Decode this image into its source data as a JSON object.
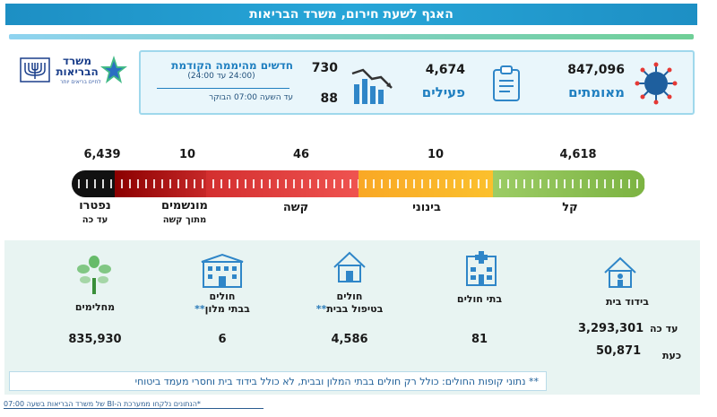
{
  "header": {
    "title": "האגף לשעת חירום, משרד הבריאות"
  },
  "logo": {
    "name": "משרד הבריאות",
    "tagline": "לחיים בריאים יותר"
  },
  "top_stats": {
    "confirmed": {
      "value": "847,096",
      "label": "מאומתים",
      "icon": "virus-icon"
    },
    "active": {
      "value": "4,674",
      "label": "פעילים",
      "icon": "clipboard-icon"
    },
    "new_since_midnight": {
      "title": "חדשים מהיממה הקודמת",
      "range": "(24:00 עד 24:00)",
      "value": "730",
      "until_label": "עד השעה  07:00  הבוקר",
      "until_value": "88",
      "icon": "chart-down-icon"
    }
  },
  "severity": {
    "mild": {
      "value": "4,618",
      "label": "קל",
      "color": "#8bc34a"
    },
    "moderate": {
      "value": "10",
      "label": "בינוני",
      "color": "#f7b733"
    },
    "severe": {
      "value": "46",
      "label": "קשה",
      "color": "#e53935"
    },
    "ventilated": {
      "value": "10",
      "label": "מונשמים",
      "sub": "מתוך קשה",
      "color": "#c62828"
    },
    "deceased": {
      "value": "6,439",
      "label": "נפטרו",
      "sub": "עד כה",
      "color": "#111111"
    }
  },
  "bottom": {
    "recovered": {
      "label": "מחלימים",
      "value": "835,930",
      "icon": "tree-icon"
    },
    "hotels": {
      "label": "חולים",
      "label2": "בבתי מלון",
      "stars": "**",
      "value": "6",
      "icon": "hotel-icon"
    },
    "home_care": {
      "label": "חולים",
      "label2": "בטיפול בבית",
      "stars": "**",
      "value": "4,586",
      "icon": "house-icon"
    },
    "hospitals": {
      "label": "בתי חולים",
      "value": "81",
      "icon": "hospital-icon"
    },
    "home_isolation": {
      "label": "בידוד בית",
      "icon": "home-isolation-icon",
      "to_date_label": "עד כה",
      "to_date_value": "3,293,301",
      "now_label": "כעת",
      "now_value": "50,871"
    }
  },
  "notes": {
    "hmo_note": "** נתוני קופות החולים: כולל רק חולים בבתי המלון ובבית, לא כולל בידוד בית וחסרי מעמד ביטוחי",
    "footer": "*הנתונים נלקחו ממערכת ה-BI של משרד הבריאות בשעה 07:00"
  }
}
